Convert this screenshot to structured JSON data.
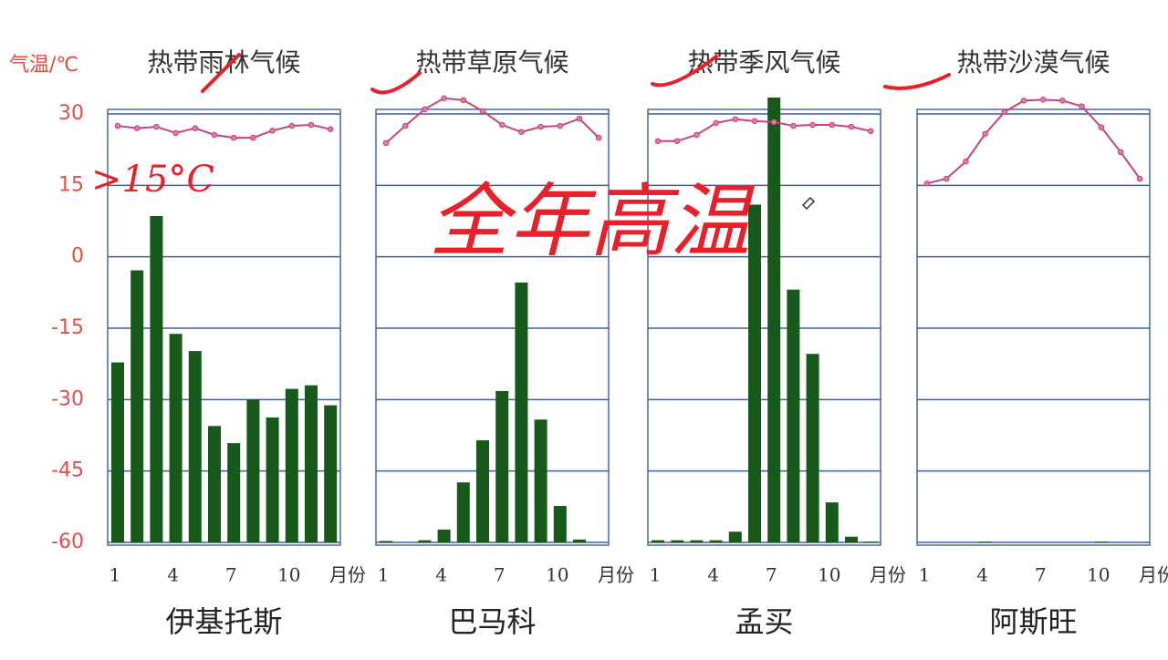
{
  "chart_data": [
    {
      "type": "combo",
      "title": "热带雨林气候",
      "station": "伊基托斯",
      "y_label": "气温/℃",
      "x_label": "月份",
      "categories": [
        1,
        null,
        null,
        4,
        null,
        null,
        7,
        null,
        null,
        10,
        null,
        null
      ],
      "ylim": [
        -60,
        30
      ],
      "yticks": [
        30,
        15,
        0,
        -15,
        -30,
        -45,
        -60
      ],
      "y2lim": [
        0,
        600
      ],
      "grid": true,
      "series": [
        {
          "type": "bar",
          "axis": "y2",
          "color": "#17591b",
          "values": [
            252,
            381,
            457,
            292,
            268,
            163,
            139,
            200,
            175,
            215,
            220,
            192
          ]
        },
        {
          "type": "line",
          "color": "#c4457d",
          "values": [
            27.5,
            27,
            27.3,
            26,
            27,
            25.6,
            25,
            25,
            26.5,
            27.5,
            27.7,
            26.8
          ]
        }
      ]
    },
    {
      "type": "combo",
      "title": "热带草原气候",
      "station": "巴马科",
      "x_label": "月份",
      "categories": [
        1,
        null,
        null,
        4,
        null,
        null,
        7,
        null,
        null,
        10,
        null,
        null
      ],
      "series": [
        {
          "type": "bar",
          "axis": "y2",
          "color": "#17591b",
          "values": [
            2,
            0,
            3,
            18,
            84,
            143,
            212,
            364,
            172,
            51,
            4,
            0
          ]
        },
        {
          "type": "line",
          "color": "#c4457d",
          "values": [
            23.9,
            27.5,
            31,
            33.3,
            32.9,
            30.6,
            27.7,
            26.2,
            27.3,
            27.5,
            29,
            25
          ]
        }
      ]
    },
    {
      "type": "combo",
      "title": "热带季风气候",
      "station": "孟买",
      "x_label": "月份",
      "categories": [
        1,
        null,
        null,
        4,
        null,
        null,
        7,
        null,
        null,
        10,
        null,
        null
      ],
      "series": [
        {
          "type": "bar",
          "axis": "y2",
          "color": "#17591b",
          "values": [
            3,
            3,
            3,
            3,
            15,
            473,
            623,
            354,
            264,
            56,
            8,
            1
          ]
        },
        {
          "type": "line",
          "color": "#c4457d",
          "values": [
            24.3,
            24.3,
            25.6,
            28.1,
            28.9,
            28.5,
            28.3,
            27.5,
            27.7,
            27.7,
            27.3,
            26.4
          ]
        }
      ]
    },
    {
      "type": "combo",
      "title": "热带沙漠气候",
      "station": "阿斯旺",
      "x_label": "月份",
      "categories": [
        1,
        null,
        null,
        4,
        null,
        null,
        7,
        null,
        null,
        10,
        null,
        null
      ],
      "series": [
        {
          "type": "bar",
          "axis": "y2",
          "color": "#17591b",
          "values": [
            0,
            0,
            0,
            1,
            0,
            0,
            0,
            0,
            0,
            1,
            0,
            0
          ]
        },
        {
          "type": "line",
          "color": "#c4457d",
          "values": [
            15.4,
            16.4,
            20,
            25.8,
            30.4,
            32.8,
            33,
            32.8,
            31.6,
            27.2,
            22,
            16.4
          ]
        }
      ]
    }
  ],
  "annotations": [
    ">15°C",
    "全年高温"
  ]
}
